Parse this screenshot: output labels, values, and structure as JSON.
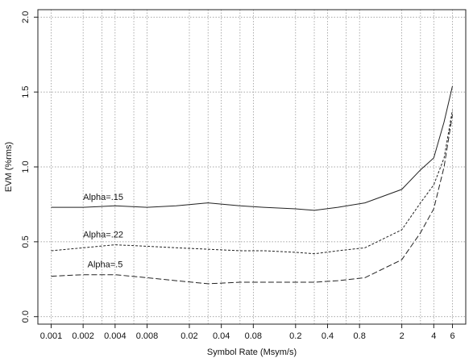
{
  "chart_data": {
    "type": "line",
    "title": "",
    "xlabel": "Symbol Rate (Msym/s)",
    "ylabel": "EVM (%rms)",
    "xscale": "log",
    "xlim": [
      0.00075,
      8
    ],
    "ylim": [
      -0.05,
      2.05
    ],
    "grid": true,
    "legend": "none",
    "xticks": [
      0.001,
      0.002,
      0.004,
      0.008,
      0.02,
      0.04,
      0.08,
      0.2,
      0.4,
      0.8,
      2,
      4,
      6
    ],
    "xtick_labels": [
      "0.001",
      "0.002",
      "0.004",
      "0.008",
      "0.02",
      "0.04",
      "0.08",
      "0.2",
      "0.4",
      "0.8",
      "2",
      "4",
      "6"
    ],
    "yticks": [
      0.0,
      0.5,
      1.0,
      1.5,
      2.0
    ],
    "ytick_labels": [
      "0.0",
      "0.5",
      "1.0",
      "1.5",
      "2.0"
    ],
    "x_gridlines": [
      0.001,
      0.002,
      0.003,
      0.004,
      0.006,
      0.008,
      0.02,
      0.03,
      0.04,
      0.06,
      0.08,
      0.2,
      0.3,
      0.4,
      0.6,
      0.8,
      2,
      3,
      4,
      6
    ],
    "series": [
      {
        "name": "Alpha=.15",
        "style": "solid",
        "label_anchor": [
          0.002,
          0.78
        ],
        "x": [
          0.001,
          0.002,
          0.004,
          0.008,
          0.015,
          0.03,
          0.06,
          0.1,
          0.2,
          0.3,
          0.5,
          0.9,
          2,
          3,
          4,
          5,
          6
        ],
        "y": [
          0.73,
          0.73,
          0.74,
          0.73,
          0.74,
          0.76,
          0.74,
          0.73,
          0.72,
          0.71,
          0.73,
          0.76,
          0.85,
          0.98,
          1.06,
          1.3,
          1.54
        ]
      },
      {
        "name": "Alpha=.22",
        "style": "dashed-short",
        "label_anchor": [
          0.002,
          0.53
        ],
        "x": [
          0.001,
          0.002,
          0.004,
          0.008,
          0.015,
          0.03,
          0.06,
          0.1,
          0.2,
          0.3,
          0.5,
          0.9,
          2,
          3,
          4,
          5,
          6
        ],
        "y": [
          0.44,
          0.46,
          0.48,
          0.47,
          0.46,
          0.45,
          0.44,
          0.44,
          0.43,
          0.42,
          0.44,
          0.46,
          0.58,
          0.76,
          0.88,
          1.06,
          1.38
        ]
      },
      {
        "name": "Alpha=.5",
        "style": "dashed-long",
        "label_anchor": [
          0.0022,
          0.33
        ],
        "x": [
          0.001,
          0.002,
          0.004,
          0.008,
          0.015,
          0.03,
          0.06,
          0.1,
          0.2,
          0.3,
          0.5,
          0.9,
          2,
          3,
          4,
          5,
          6
        ],
        "y": [
          0.27,
          0.28,
          0.28,
          0.26,
          0.24,
          0.22,
          0.23,
          0.23,
          0.23,
          0.23,
          0.24,
          0.26,
          0.38,
          0.56,
          0.72,
          1.0,
          1.35
        ]
      }
    ]
  }
}
